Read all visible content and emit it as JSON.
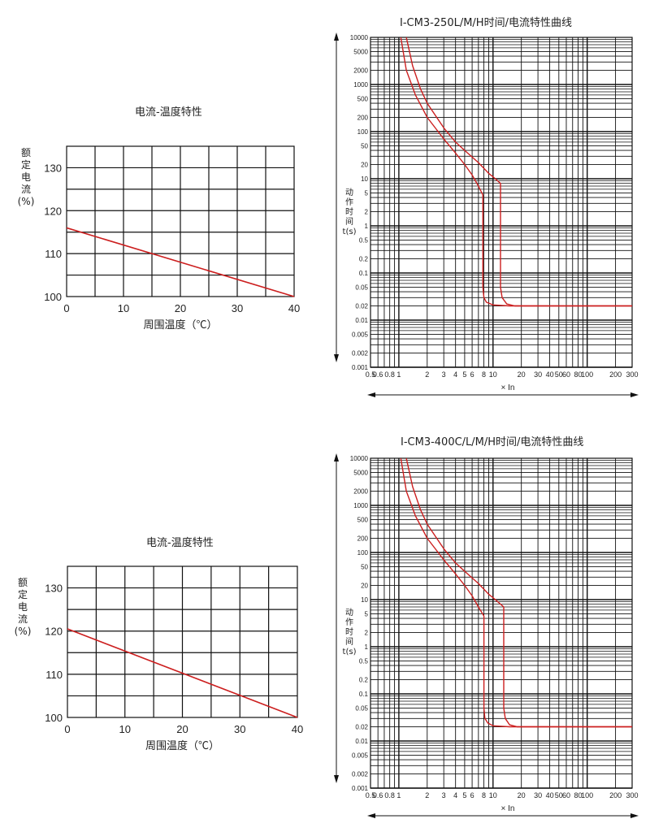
{
  "temp_charts": [
    {
      "title": "电流-温度特性",
      "ylabel_chars": [
        "额",
        "定",
        "电",
        "流",
        "(%)"
      ],
      "xlabel": "周围温度（℃）",
      "y_ticks": [
        "100",
        "110",
        "120",
        "130"
      ],
      "x_ticks": [
        "0",
        "10",
        "20",
        "30",
        "40"
      ]
    },
    {
      "title": "电流-温度特性",
      "ylabel_chars": [
        "额",
        "定",
        "电",
        "流",
        "(%)"
      ],
      "xlabel": "周围温度（℃）",
      "y_ticks": [
        "100",
        "110",
        "120",
        "130"
      ],
      "x_ticks": [
        "0",
        "10",
        "20",
        "30",
        "40"
      ]
    }
  ],
  "time_charts": [
    {
      "title": "I-CM3-250L/M/H时间/电流特性曲线",
      "ylabel_chars": [
        "动",
        "作",
        "时",
        "间",
        "t(s)"
      ],
      "xlabel": "× In",
      "y_tick_labels": [
        "10000",
        "5000",
        "2000",
        "1000",
        "500",
        "200",
        "100",
        "50",
        "20",
        "10",
        "5",
        "2",
        "1",
        "0.5",
        "0.2",
        "0.1",
        "0.05",
        "0.02",
        "0.01",
        "0.005",
        "0.002",
        "0.001"
      ],
      "x_tick_labels": [
        "0.5",
        "0.6",
        "0.8",
        "1",
        "2",
        "3",
        "4",
        "5",
        "6",
        "8",
        "10",
        "20",
        "30",
        "40",
        "50",
        "60",
        "80",
        "100",
        "200",
        "300"
      ]
    },
    {
      "title": "I-CM3-400C/L/M/H时间/电流特性曲线",
      "ylabel_chars": [
        "动",
        "作",
        "时",
        "间",
        "t(s)"
      ],
      "xlabel": "× In",
      "y_tick_labels": [
        "10000",
        "5000",
        "2000",
        "1000",
        "500",
        "200",
        "100",
        "50",
        "20",
        "10",
        "5",
        "2",
        "1",
        "0.5",
        "0.2",
        "0.1",
        "0.05",
        "0.02",
        "0.01",
        "0.005",
        "0.002",
        "0.001"
      ],
      "x_tick_labels": [
        "0.5",
        "0.6",
        "0.8",
        "1",
        "2",
        "3",
        "4",
        "5",
        "6",
        "8",
        "10",
        "20",
        "30",
        "40",
        "50",
        "60",
        "80",
        "100",
        "200",
        "300"
      ]
    }
  ],
  "chart_data": [
    {
      "type": "line",
      "title": "电流-温度特性",
      "xlabel": "周围温度（℃）",
      "ylabel": "额定电流(%)",
      "xlim": [
        0,
        40
      ],
      "ylim": [
        100,
        135
      ],
      "grid": true,
      "series": [
        {
          "x": [
            0,
            40
          ],
          "y": [
            116,
            100
          ],
          "color": "#cc1f1f"
        }
      ]
    },
    {
      "type": "line",
      "title": "I-CM3-250L/M/H时间/电流特性曲线",
      "xlabel": "× In",
      "ylabel": "动作时间 t(s)",
      "x_scale": "log",
      "y_scale": "log",
      "xlim": [
        0.5,
        300
      ],
      "ylim": [
        0.001,
        10000
      ],
      "grid": true,
      "series": [
        {
          "x": [
            1.05,
            1.2,
            1.5,
            2,
            3,
            4,
            5,
            6,
            7,
            7.8,
            7.8,
            8,
            8.5,
            10,
            15,
            20,
            50,
            100,
            300
          ],
          "y": [
            10000,
            2000,
            600,
            200,
            70,
            35,
            20,
            12,
            7,
            4.5,
            0.05,
            0.03,
            0.024,
            0.021,
            0.02,
            0.02,
            0.02,
            0.02,
            0.02
          ],
          "color": "#cc1f1f"
        },
        {
          "x": [
            1.2,
            1.4,
            1.7,
            2,
            3,
            4,
            5,
            7,
            9,
            10,
            12,
            12,
            12.5,
            14,
            17,
            20,
            50,
            100,
            300
          ],
          "y": [
            10000,
            2500,
            800,
            400,
            120,
            60,
            40,
            22,
            13,
            11,
            8,
            0.05,
            0.03,
            0.022,
            0.02,
            0.02,
            0.02,
            0.02,
            0.02
          ],
          "color": "#cc1f1f"
        }
      ]
    },
    {
      "type": "line",
      "title": "电流-温度特性",
      "xlabel": "周围温度（℃）",
      "ylabel": "额定电流(%)",
      "xlim": [
        0,
        40
      ],
      "ylim": [
        100,
        135
      ],
      "grid": true,
      "series": [
        {
          "x": [
            0,
            40
          ],
          "y": [
            120.5,
            100
          ],
          "color": "#cc1f1f"
        }
      ]
    },
    {
      "type": "line",
      "title": "I-CM3-400C/L/M/H时间/电流特性曲线",
      "xlabel": "× In",
      "ylabel": "动作时间 t(s)",
      "x_scale": "log",
      "y_scale": "log",
      "xlim": [
        0.5,
        300
      ],
      "ylim": [
        0.001,
        10000
      ],
      "grid": true,
      "series": [
        {
          "x": [
            1.05,
            1.2,
            1.5,
            2,
            3,
            4,
            5,
            6,
            7,
            8,
            8,
            8.2,
            8.8,
            10,
            15,
            20,
            50,
            100,
            300
          ],
          "y": [
            10000,
            2000,
            600,
            200,
            70,
            35,
            20,
            12,
            7,
            4.5,
            0.05,
            0.03,
            0.024,
            0.021,
            0.02,
            0.02,
            0.02,
            0.02,
            0.02
          ],
          "color": "#cc1f1f"
        },
        {
          "x": [
            1.2,
            1.4,
            1.7,
            2,
            3,
            4,
            5,
            7,
            9,
            10,
            13,
            13,
            13.5,
            15,
            18,
            20,
            50,
            100,
            300
          ],
          "y": [
            10000,
            2500,
            800,
            400,
            120,
            60,
            40,
            22,
            13,
            11,
            7,
            0.05,
            0.03,
            0.022,
            0.02,
            0.02,
            0.02,
            0.02,
            0.02
          ],
          "color": "#cc1f1f"
        }
      ]
    }
  ]
}
